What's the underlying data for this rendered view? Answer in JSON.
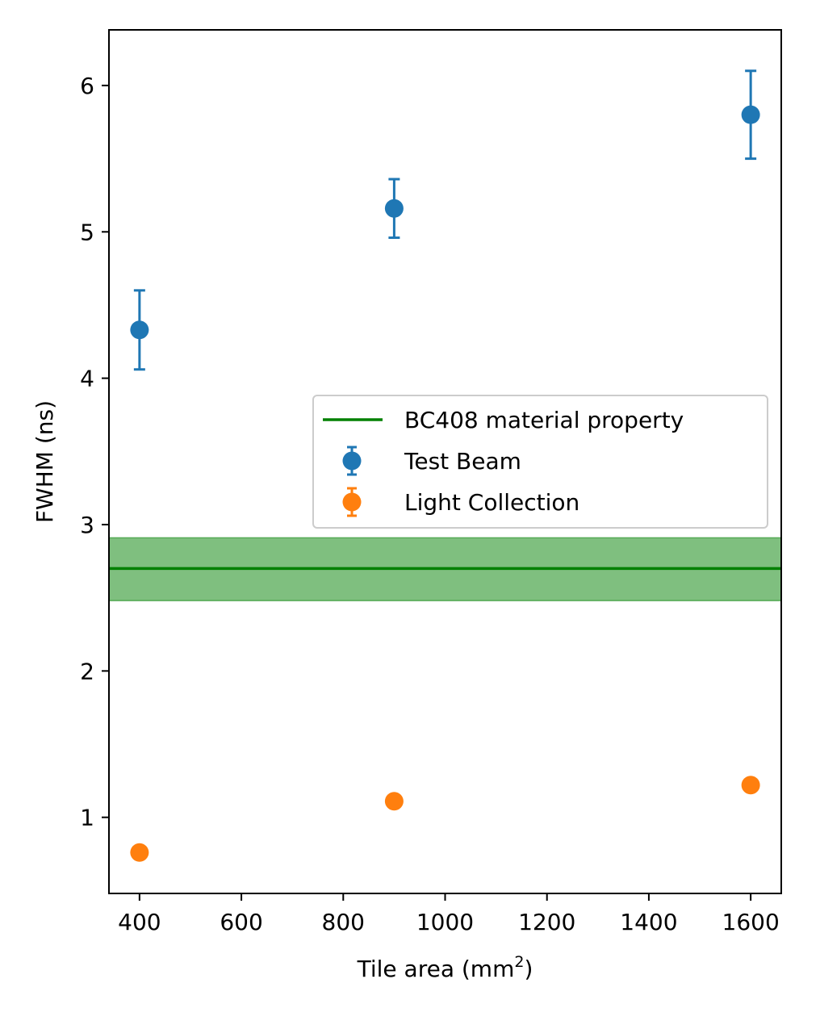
{
  "chart_data": {
    "type": "scatter",
    "xlabel": "Tile area (mm",
    "xlabel_sup": "2",
    "xlabel_suffix": ")",
    "ylabel": "FWHM (ns)",
    "xlim": [
      340,
      1660
    ],
    "ylim": [
      0.48,
      6.38
    ],
    "xticks": [
      400,
      600,
      800,
      1000,
      1200,
      1400,
      1600
    ],
    "yticks": [
      1,
      2,
      3,
      4,
      5,
      6
    ],
    "band": {
      "name": "BC408 material property",
      "value": 2.7,
      "lower": 2.48,
      "upper": 2.91,
      "color": "#008000"
    },
    "series": [
      {
        "name": "Test Beam",
        "color": "#1f77b4",
        "x": [
          400,
          900,
          1600
        ],
        "y": [
          4.33,
          5.16,
          5.8
        ],
        "yerr": [
          0.27,
          0.2,
          0.3
        ]
      },
      {
        "name": "Light Collection",
        "color": "#ff7f0e",
        "x": [
          400,
          900,
          1600
        ],
        "y": [
          0.76,
          1.11,
          1.22
        ],
        "yerr": [
          0,
          0,
          0
        ]
      }
    ],
    "legend": [
      {
        "label": "BC408 material property",
        "kind": "line",
        "color": "#008000"
      },
      {
        "label": "Test Beam",
        "kind": "errorbar",
        "color": "#1f77b4"
      },
      {
        "label": "Light Collection",
        "kind": "errorbar",
        "color": "#ff7f0e"
      }
    ],
    "legend_position": "center-right"
  }
}
